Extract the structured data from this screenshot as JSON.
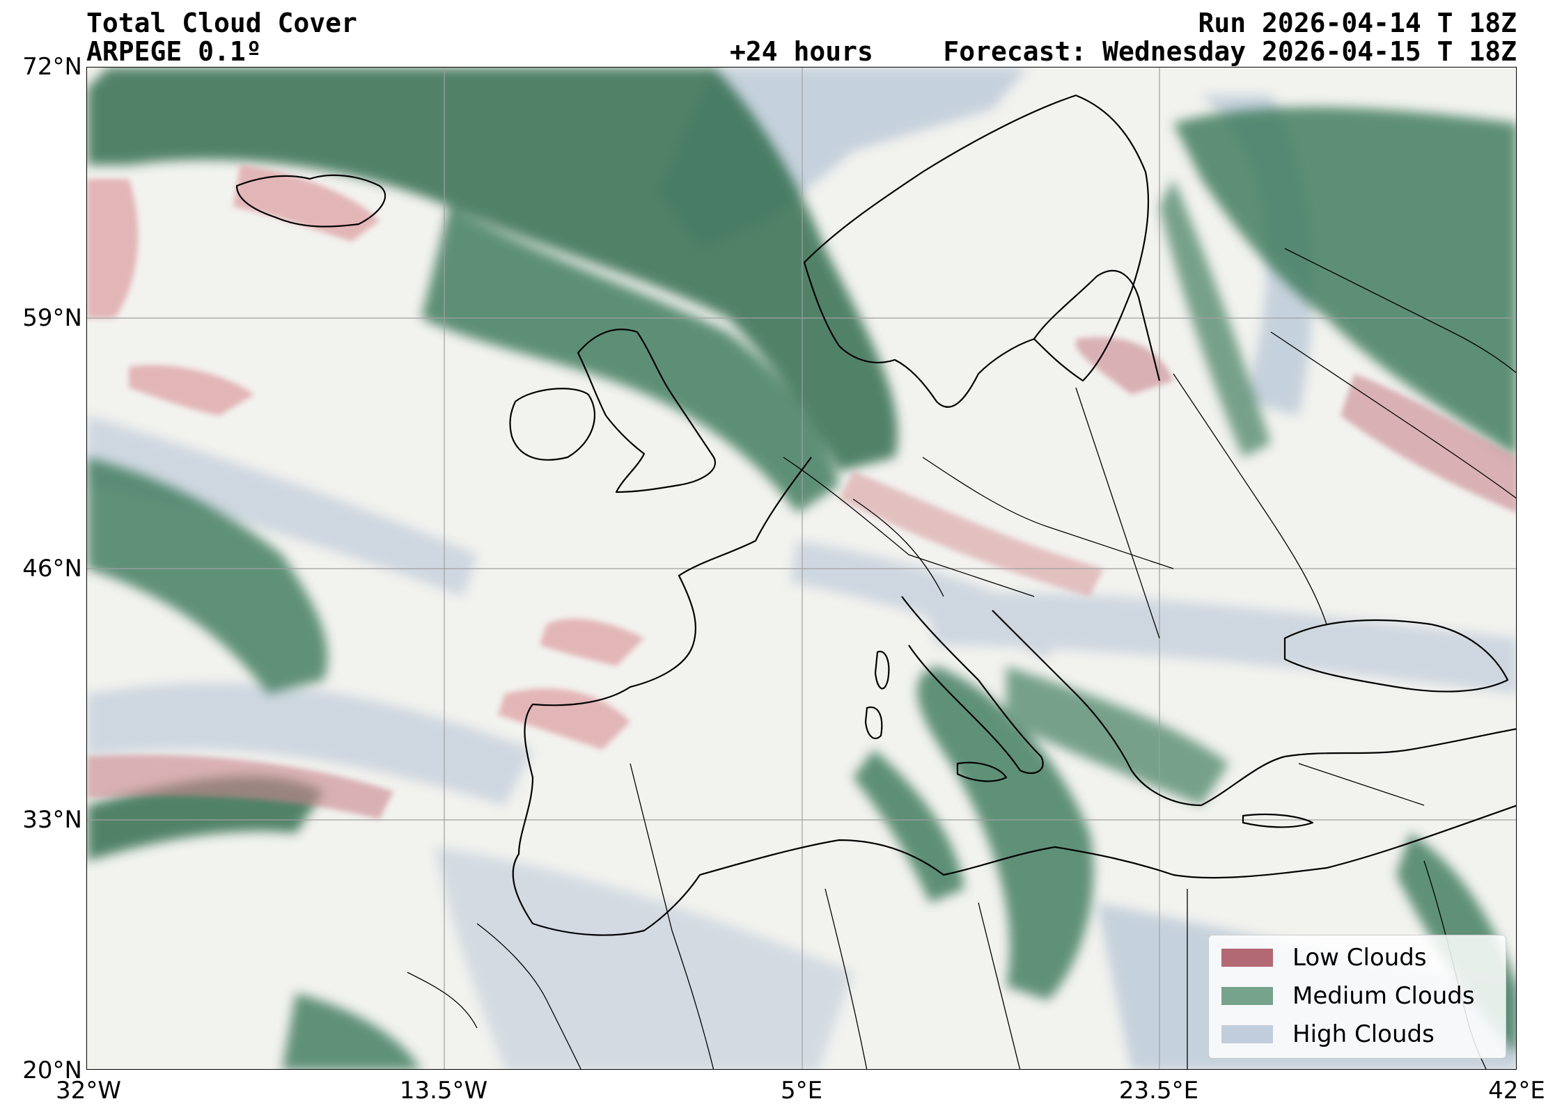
{
  "header": {
    "title": "Total Cloud Cover",
    "model": "ARPEGE 0.1º",
    "lead": "+24 hours",
    "run": "Run 2026-04-14 T 18Z",
    "forecast": "Forecast: Wednesday 2026-04-15 T 18Z"
  },
  "axes": {
    "lat_labels": [
      "72°N",
      "59°N",
      "46°N",
      "33°N",
      "20°N"
    ],
    "lon_labels": [
      "32°W",
      "13.5°W",
      "5°E",
      "23.5°E",
      "42°E"
    ]
  },
  "legend": {
    "items": [
      {
        "label": "Low Clouds",
        "color": "#a6505a"
      },
      {
        "label": "Medium Clouds",
        "color": "#5f9478"
      },
      {
        "label": "High Clouds",
        "color": "#b7c6d6"
      }
    ]
  },
  "colors": {
    "background": "#f2f2ee",
    "low_clouds": "#a6505a",
    "medium_clouds": "#2f6b4c",
    "high_clouds": "#a9b7c6",
    "coastline": "#000000",
    "grid": "#a0a0a0"
  }
}
